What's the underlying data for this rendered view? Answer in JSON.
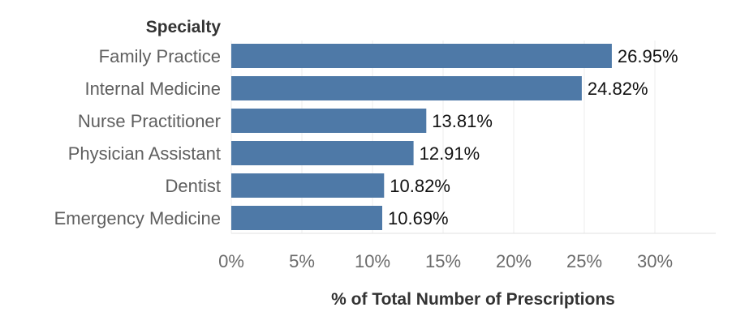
{
  "chart_data": {
    "type": "bar",
    "orientation": "horizontal",
    "row_header": "Specialty",
    "categories": [
      "Family Practice",
      "Internal Medicine",
      "Nurse Practitioner",
      "Physician Assistant",
      "Dentist",
      "Emergency Medicine"
    ],
    "values": [
      26.95,
      24.82,
      13.81,
      12.91,
      10.82,
      10.69
    ],
    "value_labels": [
      "26.95%",
      "24.82%",
      "13.81%",
      "12.91%",
      "10.82%",
      "10.69%"
    ],
    "xlabel": "% of Total Number of Prescriptions",
    "ylabel": "",
    "xlim": [
      0,
      34
    ],
    "x_ticks": [
      0,
      5,
      10,
      15,
      20,
      25,
      30
    ],
    "x_tick_labels": [
      "0%",
      "5%",
      "10%",
      "15%",
      "20%",
      "25%",
      "30%"
    ],
    "grid": "vertical",
    "legend": "none",
    "bar_color": "#4e79a7"
  }
}
